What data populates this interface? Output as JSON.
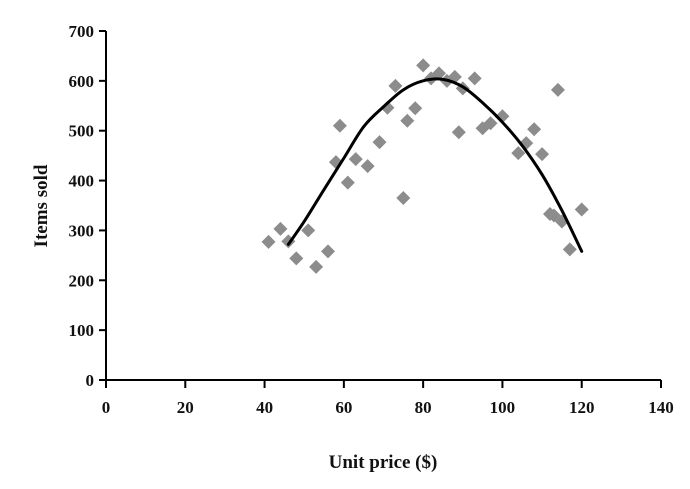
{
  "chart_data": {
    "type": "scatter",
    "title": "",
    "xlabel": "Unit price ($)",
    "ylabel": "Items sold",
    "xlim": [
      0,
      140
    ],
    "ylim": [
      0,
      700
    ],
    "x_ticks": [
      0,
      20,
      40,
      60,
      80,
      100,
      120,
      140
    ],
    "y_ticks": [
      0,
      100,
      200,
      300,
      400,
      500,
      600,
      700
    ],
    "grid": false,
    "legend": "none",
    "colors": {
      "points": "#8c8c8c",
      "trend": "#000000",
      "axis": "#000000"
    },
    "series": [
      {
        "kind": "points",
        "marker": "diamond",
        "x": [
          41,
          44,
          46,
          48,
          51,
          53,
          56,
          58,
          59,
          61,
          63,
          66,
          69,
          71,
          73,
          75,
          76,
          78,
          80,
          82,
          84,
          86,
          88,
          89,
          90,
          93,
          95,
          97,
          100,
          104,
          106,
          108,
          110,
          112,
          113,
          114,
          115,
          117,
          120
        ],
        "y": [
          277,
          303,
          278,
          244,
          300,
          227,
          258,
          437,
          510,
          396,
          443,
          429,
          477,
          546,
          590,
          365,
          520,
          545,
          631,
          605,
          615,
          600,
          608,
          497,
          585,
          605,
          505,
          515,
          529,
          455,
          475,
          503,
          453,
          333,
          330,
          582,
          318,
          262,
          342
        ]
      },
      {
        "kind": "trend",
        "x": [
          46,
          50,
          55,
          60,
          65,
          70,
          75,
          80,
          85,
          90,
          95,
          100,
          105,
          110,
          115,
          120
        ],
        "y": [
          272,
          318,
          382,
          445,
          508,
          548,
          582,
          600,
          603,
          588,
          556,
          517,
          470,
          412,
          340,
          258
        ]
      }
    ]
  }
}
